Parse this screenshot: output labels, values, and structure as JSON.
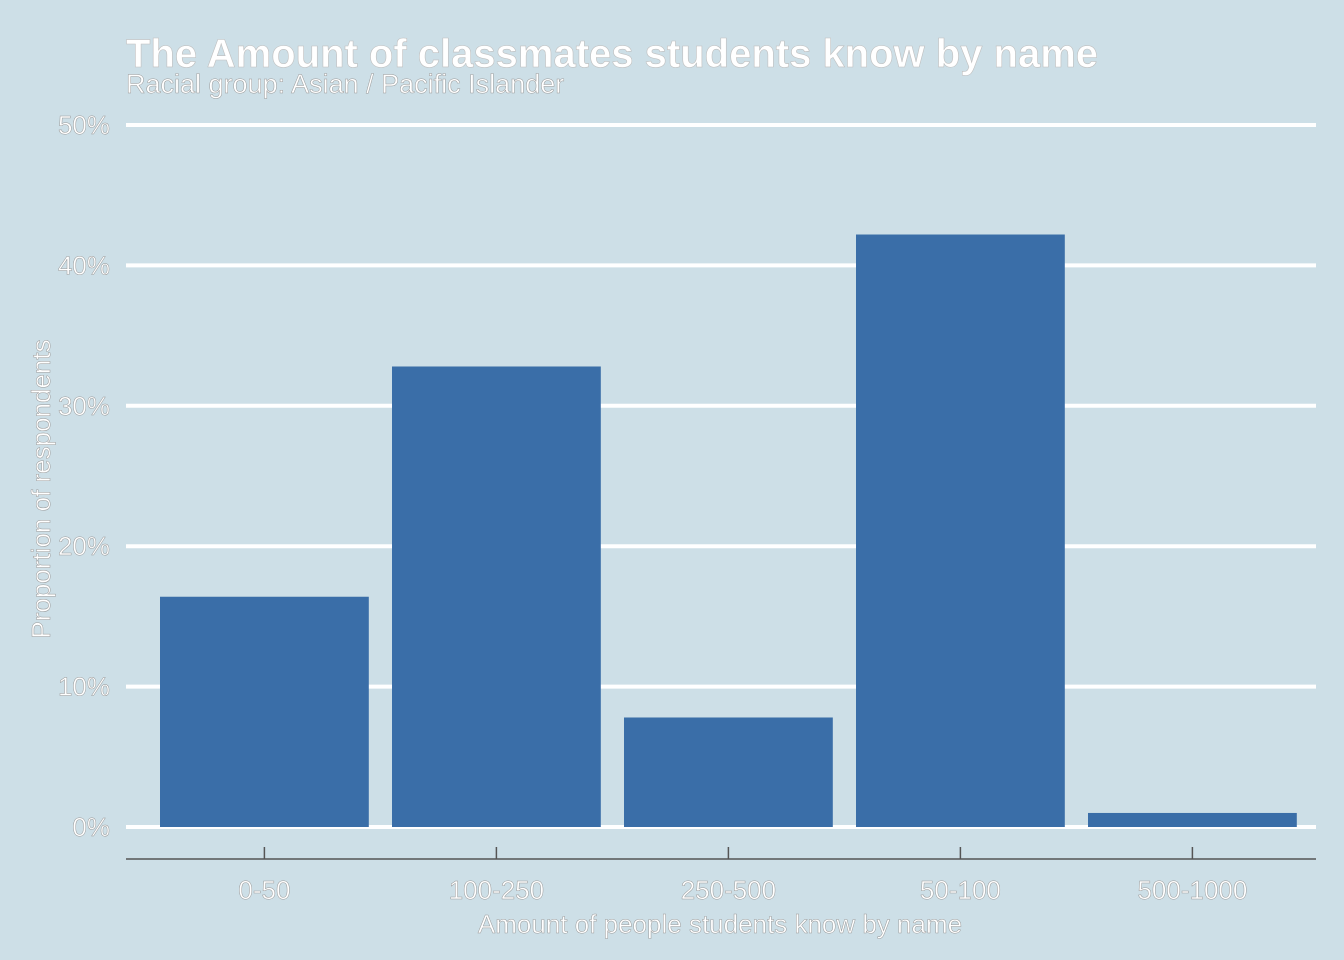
{
  "colors": {
    "background": "#cddfe7",
    "bar": "#3a6ea8",
    "gridline": "#ffffff",
    "text": "#ffffff",
    "axis_line": "#555555"
  },
  "chart_data": {
    "type": "bar",
    "title": "The Amount of classmates students know by name",
    "subtitle": "Racial group: Asian / Pacific Islander",
    "xlabel": "Amount of people students know by name",
    "ylabel": "Proportion of respondents",
    "categories": [
      "0-50",
      "100-250",
      "250-500",
      "50-100",
      "500-1000"
    ],
    "values": [
      16.4,
      32.8,
      7.8,
      42.2,
      1.0
    ],
    "ylim": [
      0,
      50
    ],
    "yticks": [
      0,
      10,
      20,
      30,
      40,
      50
    ],
    "ytick_labels": [
      "0%",
      "10%",
      "20%",
      "30%",
      "40%",
      "50%"
    ],
    "grid": "horizontal major",
    "legend": "none"
  }
}
